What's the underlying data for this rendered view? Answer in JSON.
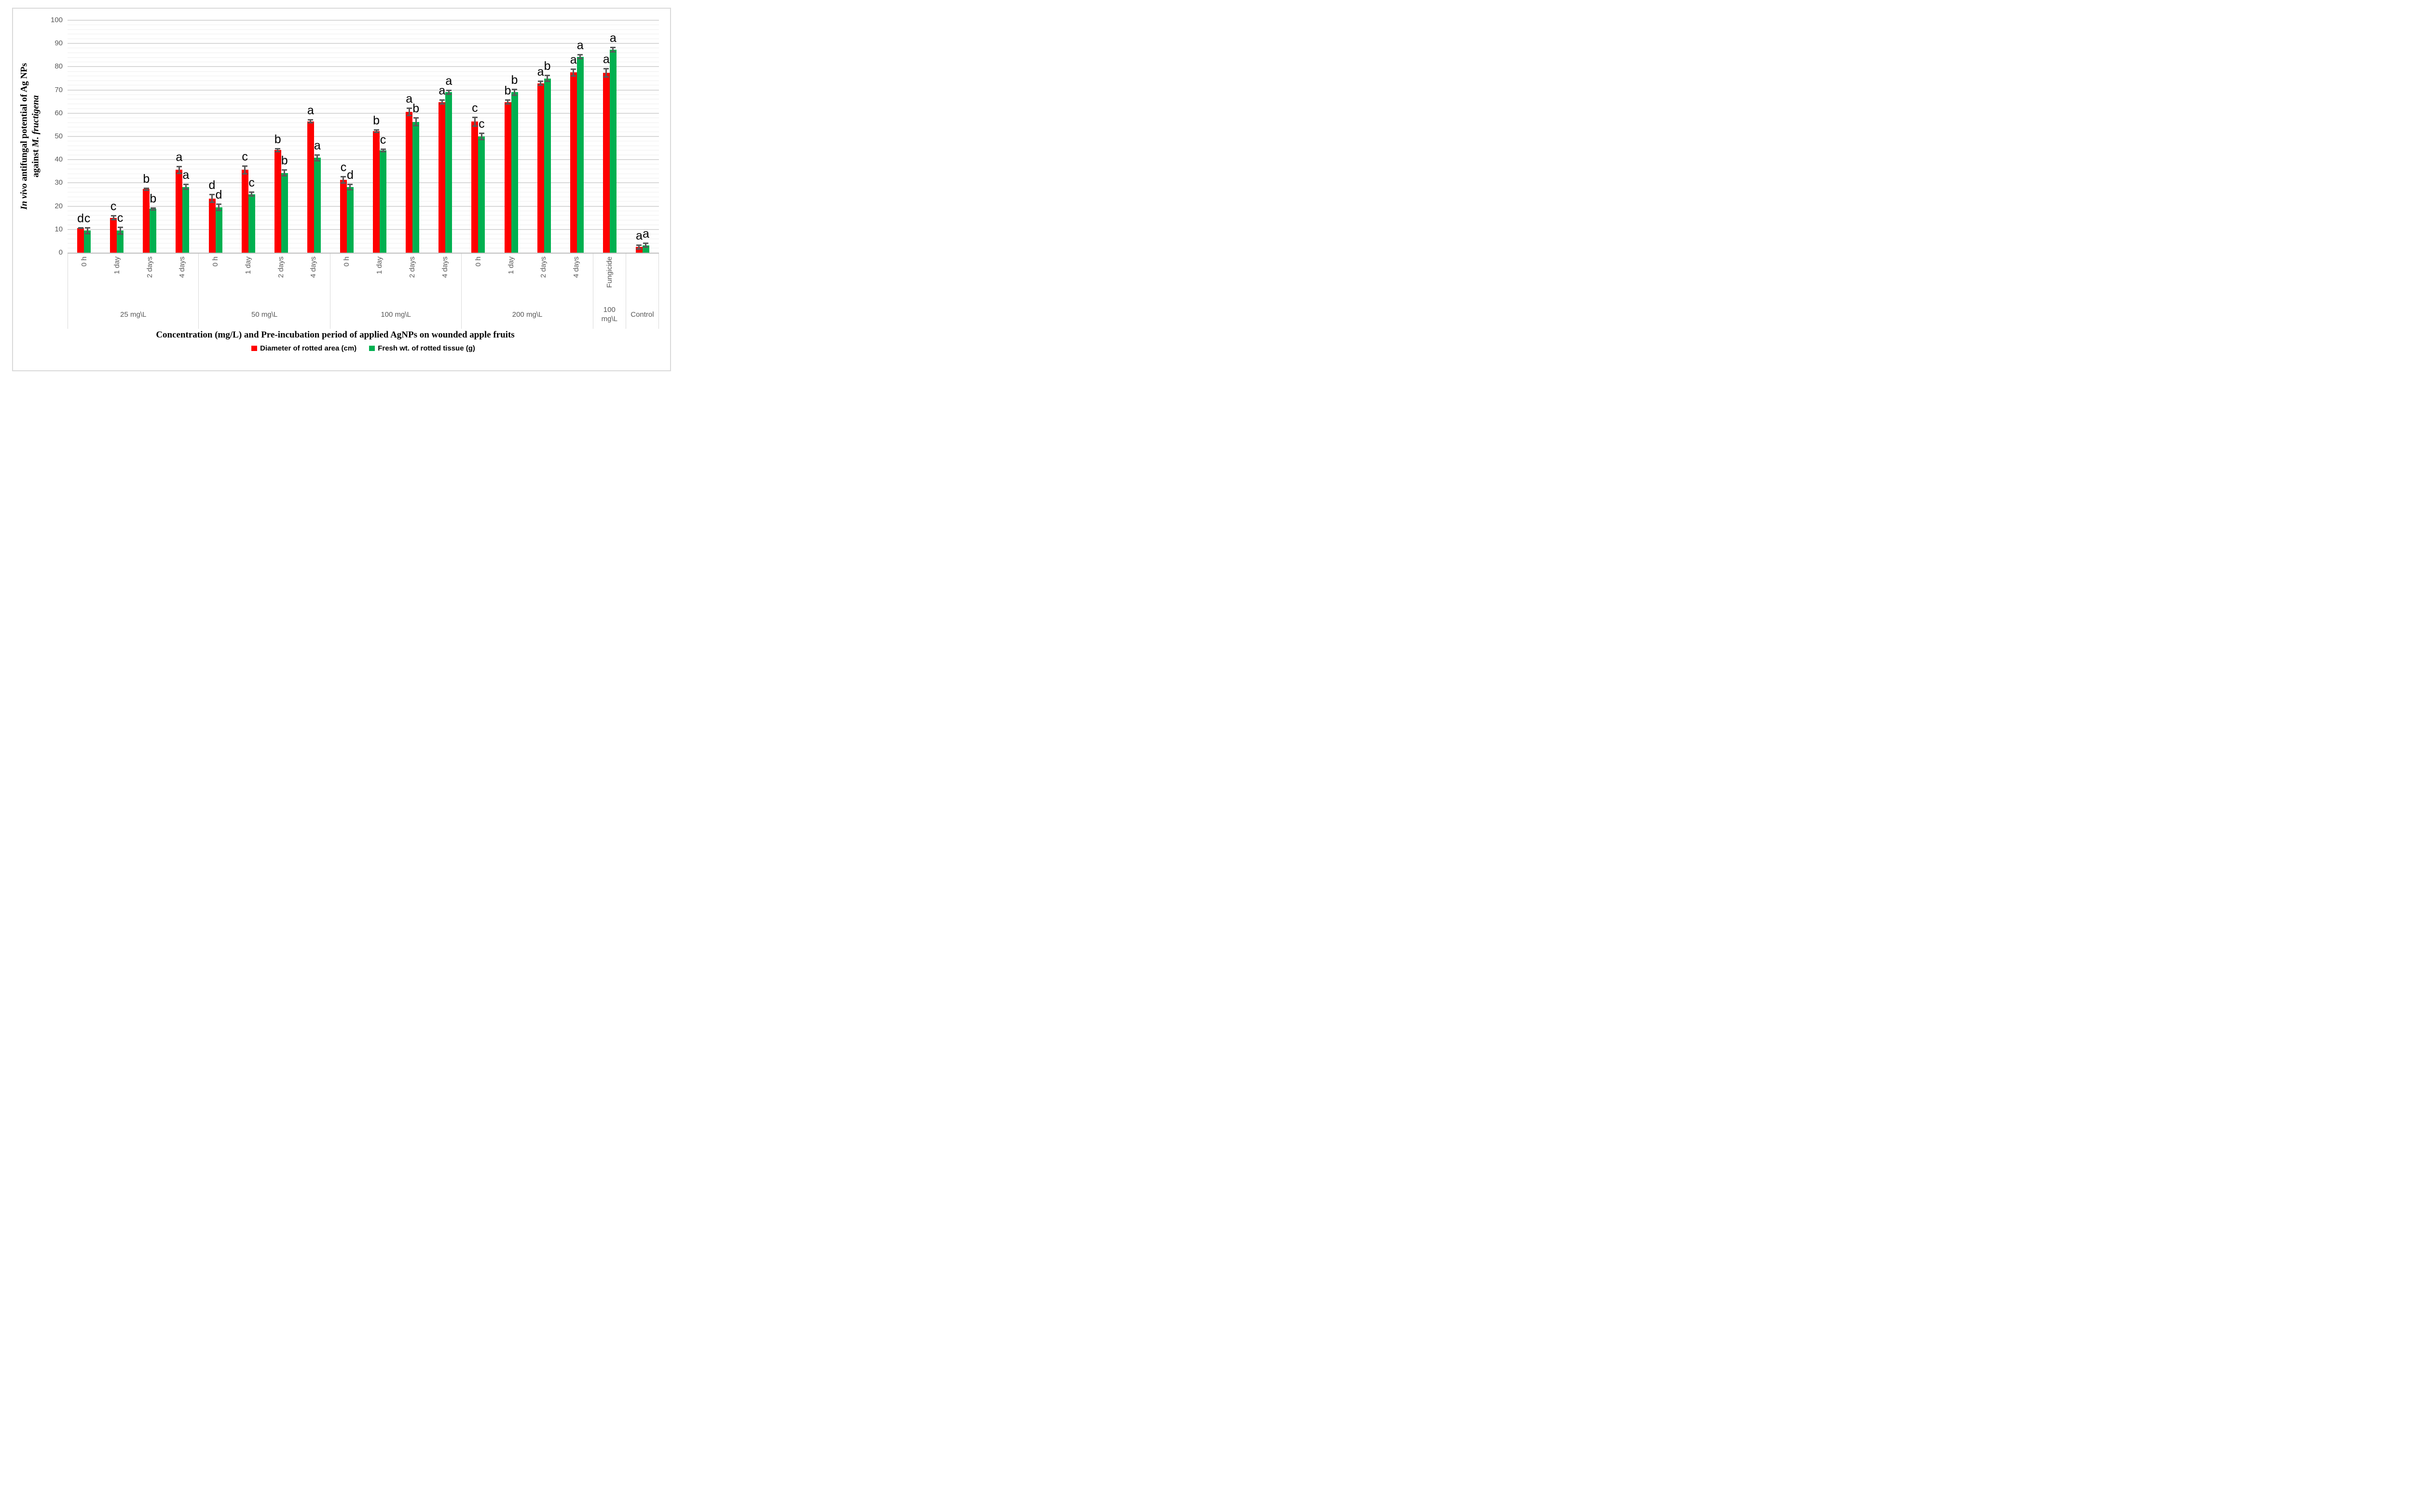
{
  "y_axis": {
    "title_line1_italic": "In vivo",
    "title_line1_rest": " antifungal potential of  Ag NPs",
    "title_line2_rest": "against ",
    "title_line2_italic": "M. fructigena",
    "tick_min": 0,
    "tick_max": 100,
    "tick_step": 10
  },
  "x_axis": {
    "title": "Concentration (mg/L) and Pre-incubation period of applied AgNPs on wounded apple fruits"
  },
  "legend": [
    {
      "label": "Diameter of rotted area (cm)",
      "color": "#FF0000"
    },
    {
      "label": "Fresh wt. of rotted tissue (g)",
      "color": "#00B050"
    }
  ],
  "chart_data": {
    "type": "bar",
    "title": "",
    "ylabel": "In vivo antifungal potential of Ag NPs against M. fructigena",
    "xlabel": "Concentration (mg/L) and Pre-incubation period of applied AgNPs on wounded apple fruits",
    "ylim": [
      0,
      100
    ],
    "grid": {
      "minor_step": 2,
      "major_step": 10,
      "minor_color": "#EFEFEF",
      "major_color": "#D9D9D9"
    },
    "legend_position": "bottom",
    "error_bar_color": "#595959",
    "series": [
      {
        "name": "Diameter of rotted area (cm)",
        "color": "#FF0000"
      },
      {
        "name": "Fresh wt. of rotted tissue (g)",
        "color": "#00B050"
      }
    ],
    "groups": [
      {
        "label": "25 mg\\L",
        "columns": [
          {
            "tick": "0 h",
            "red": {
              "value": 10.6,
              "err": 0.4,
              "letter": "d"
            },
            "green": {
              "value": 9.5,
              "err": 1.6,
              "letter": "c"
            }
          },
          {
            "tick": "1 day",
            "red": {
              "value": 15.0,
              "err": 1.2,
              "letter": "c"
            },
            "green": {
              "value": 9.5,
              "err": 1.8,
              "letter": "c"
            }
          },
          {
            "tick": "2 days",
            "red": {
              "value": 27.3,
              "err": 0.8,
              "letter": "b"
            },
            "green": {
              "value": 18.8,
              "err": 0.8,
              "letter": "b"
            }
          },
          {
            "tick": "4 days",
            "red": {
              "value": 35.6,
              "err": 1.8,
              "letter": "a"
            },
            "green": {
              "value": 28.3,
              "err": 1.4,
              "letter": "a"
            }
          }
        ]
      },
      {
        "label": "50 mg\\L",
        "columns": [
          {
            "tick": "0 h",
            "red": {
              "value": 23.3,
              "err": 2.0,
              "letter": "d"
            },
            "green": {
              "value": 19.5,
              "err": 1.7,
              "letter": "d"
            }
          },
          {
            "tick": "1 day",
            "red": {
              "value": 35.6,
              "err": 1.9,
              "letter": "c"
            },
            "green": {
              "value": 25.2,
              "err": 1.1,
              "letter": "c"
            }
          },
          {
            "tick": "2 days",
            "red": {
              "value": 44.1,
              "err": 0.9,
              "letter": "b"
            },
            "green": {
              "value": 34.3,
              "err": 1.6,
              "letter": "b"
            }
          },
          {
            "tick": "4 days",
            "red": {
              "value": 56.5,
              "err": 0.9,
              "letter": "a"
            },
            "green": {
              "value": 40.8,
              "err": 1.6,
              "letter": "a"
            }
          }
        ]
      },
      {
        "label": "100 mg\\L",
        "columns": [
          {
            "tick": "0 h",
            "red": {
              "value": 31.3,
              "err": 1.7,
              "letter": "c"
            },
            "green": {
              "value": 28.2,
              "err": 1.5,
              "letter": "d"
            }
          },
          {
            "tick": "1 day",
            "red": {
              "value": 52.3,
              "err": 0.9,
              "letter": "b"
            },
            "green": {
              "value": 44.0,
              "err": 0.9,
              "letter": "c"
            }
          },
          {
            "tick": "2 days",
            "red": {
              "value": 60.6,
              "err": 1.9,
              "letter": "a"
            },
            "green": {
              "value": 56.3,
              "err": 1.9,
              "letter": "b"
            }
          },
          {
            "tick": "4 days",
            "red": {
              "value": 64.8,
              "err": 1.1,
              "letter": "a"
            },
            "green": {
              "value": 69.0,
              "err": 1.2,
              "letter": "a"
            }
          }
        ]
      },
      {
        "label": "200 mg\\L",
        "columns": [
          {
            "tick": "0 h",
            "red": {
              "value": 56.4,
              "err": 2.2,
              "letter": "c"
            },
            "green": {
              "value": 50.0,
              "err": 1.6,
              "letter": "c"
            }
          },
          {
            "tick": "1 day",
            "red": {
              "value": 64.8,
              "err": 1.2,
              "letter": "b"
            },
            "green": {
              "value": 69.0,
              "err": 1.6,
              "letter": "b"
            }
          },
          {
            "tick": "2 days",
            "red": {
              "value": 72.9,
              "err": 1.2,
              "letter": "a"
            },
            "green": {
              "value": 75.0,
              "err": 1.5,
              "letter": "b"
            }
          },
          {
            "tick": "4 days",
            "red": {
              "value": 77.5,
              "err": 1.7,
              "letter": "a"
            },
            "green": {
              "value": 84.3,
              "err": 1.1,
              "letter": "a"
            }
          }
        ]
      },
      {
        "label": "100\nmg\\L",
        "columns": [
          {
            "tick": "Fungicide",
            "red": {
              "value": 77.4,
              "err": 2.1,
              "letter": "a"
            },
            "green": {
              "value": 87.3,
              "err": 1.2,
              "letter": "a"
            }
          }
        ]
      },
      {
        "label": "Control",
        "columns": [
          {
            "tick": "",
            "red": {
              "value": 2.4,
              "err": 1.1,
              "letter": "a"
            },
            "green": {
              "value": 3.2,
              "err": 1.2,
              "letter": "a"
            }
          }
        ]
      }
    ]
  }
}
